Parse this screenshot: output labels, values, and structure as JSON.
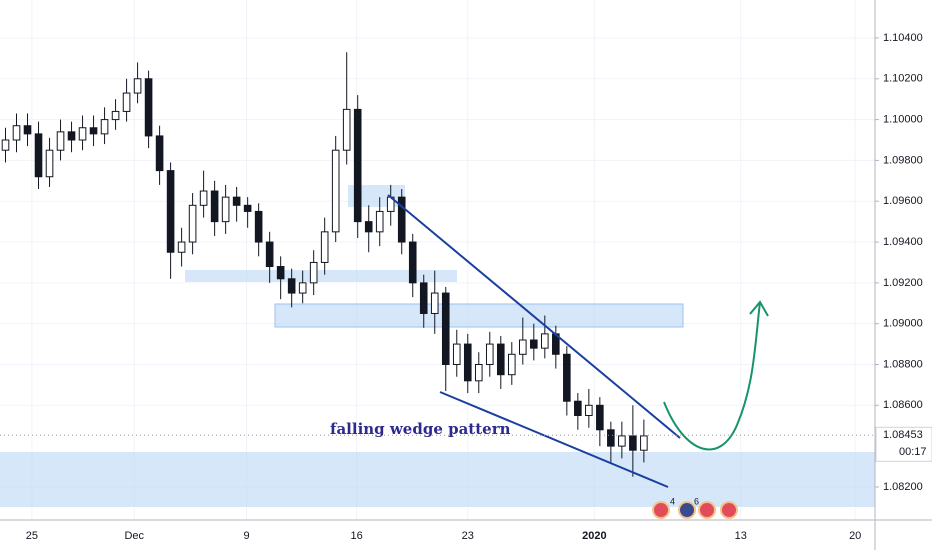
{
  "chart_data": {
    "type": "candlestick",
    "annotation": "falling wedge pattern",
    "event_counts": [
      "4",
      "6"
    ],
    "color": "#131722",
    "xlim": [
      -0.5,
      79
    ],
    "xticks": [
      {
        "value": 2.4,
        "label": "25"
      },
      {
        "value": 11.7,
        "label": "Dec"
      },
      {
        "value": 21.9,
        "label": "9"
      },
      {
        "value": 31.9,
        "label": "16"
      },
      {
        "value": 42,
        "label": "23"
      },
      {
        "value": 53.5,
        "label": "2020"
      },
      {
        "value": 66.8,
        "label": "13"
      },
      {
        "value": 77.2,
        "label": "20"
      }
    ],
    "ylim": [
      1.08038,
      1.10586
    ],
    "yticks": [
      {
        "value": 1.082,
        "label": "1.08200"
      },
      {
        "value": 1.086,
        "label": "1.08600"
      },
      {
        "value": 1.088,
        "label": "1.08800"
      },
      {
        "value": 1.09,
        "label": "1.09000"
      },
      {
        "value": 1.092,
        "label": "1.09200"
      },
      {
        "value": 1.094,
        "label": "1.09400"
      },
      {
        "value": 1.096,
        "label": "1.09600"
      },
      {
        "value": 1.098,
        "label": "1.09800"
      },
      {
        "value": 1.1,
        "label": "1.10000"
      },
      {
        "value": 1.102,
        "label": "1.10200"
      },
      {
        "value": 1.104,
        "label": "1.10400"
      }
    ],
    "last_price": {
      "value": 1.08453,
      "label": "1.08453"
    },
    "countdown": "00:17",
    "grid": true,
    "open": [
      1.0985,
      1.099,
      1.0997,
      1.0993,
      1.0972,
      1.0985,
      1.0994,
      1.099,
      1.0996,
      1.0993,
      1.1,
      1.1004,
      1.1013,
      1.102,
      1.0992,
      1.0975,
      1.0935,
      1.094,
      1.0958,
      1.0965,
      1.095,
      1.0962,
      1.0958,
      1.0955,
      1.094,
      1.0928,
      1.0922,
      1.0915,
      1.092,
      1.093,
      1.0945,
      1.0985,
      1.1005,
      1.095,
      1.0945,
      1.0955,
      1.0962,
      1.094,
      1.092,
      1.0905,
      1.0915,
      1.088,
      1.089,
      1.0872,
      1.088,
      1.089,
      1.0875,
      1.0885,
      1.0892,
      1.0888,
      1.0895,
      1.0885,
      1.0862,
      1.0855,
      1.086,
      1.0848,
      1.084,
      1.0845,
      1.0838
    ],
    "high": [
      1.0996,
      1.1003,
      1.1003,
      1.0999,
      1.0991,
      1.1,
      1.0999,
      1.1002,
      1.1002,
      1.1006,
      1.101,
      1.102,
      1.1028,
      1.1024,
      1.0997,
      1.0979,
      1.0947,
      1.0964,
      1.0975,
      1.097,
      1.0968,
      1.0967,
      1.0962,
      1.0959,
      1.0945,
      1.0933,
      1.0927,
      1.0926,
      1.0936,
      1.0952,
      1.0992,
      1.1033,
      1.1012,
      1.0958,
      1.0962,
      1.0968,
      1.0966,
      1.0944,
      1.0924,
      1.0926,
      1.0918,
      1.0897,
      1.0895,
      1.0886,
      1.0896,
      1.0894,
      1.0891,
      1.0903,
      1.09,
      1.0904,
      1.0899,
      1.0889,
      1.0866,
      1.0868,
      1.0864,
      1.0852,
      1.0852,
      1.086,
      1.0853
    ],
    "low": [
      1.0979,
      1.0984,
      1.0987,
      1.0966,
      1.0967,
      1.098,
      1.0984,
      1.0985,
      1.0987,
      1.0988,
      1.0995,
      1.0999,
      1.1008,
      1.0986,
      1.0968,
      1.0922,
      1.0928,
      1.0934,
      1.0952,
      1.0943,
      1.0944,
      1.095,
      1.0947,
      1.0933,
      1.092,
      1.0912,
      1.0908,
      1.091,
      1.0914,
      1.0924,
      1.094,
      1.0978,
      1.0942,
      1.0935,
      1.0938,
      1.0948,
      1.0934,
      1.0913,
      1.0898,
      1.0895,
      1.0867,
      1.0874,
      1.0866,
      1.0866,
      1.0874,
      1.0868,
      1.087,
      1.088,
      1.0882,
      1.0883,
      1.0878,
      1.0855,
      1.0848,
      1.0849,
      1.084,
      1.0832,
      1.0834,
      1.0825,
      1.0832
    ],
    "close": [
      1.099,
      1.0997,
      1.0993,
      1.0972,
      1.0985,
      1.0994,
      1.099,
      1.0996,
      1.0993,
      1.1,
      1.1004,
      1.1013,
      1.102,
      1.0992,
      1.0975,
      1.0935,
      1.094,
      1.0958,
      1.0965,
      1.095,
      1.0962,
      1.0958,
      1.0955,
      1.094,
      1.0928,
      1.0922,
      1.0915,
      1.092,
      1.093,
      1.0945,
      1.0985,
      1.1005,
      1.095,
      1.0945,
      1.0955,
      1.0962,
      1.094,
      1.092,
      1.0905,
      1.0915,
      1.088,
      1.089,
      1.0872,
      1.088,
      1.089,
      1.0875,
      1.0885,
      1.0892,
      1.0888,
      1.0895,
      1.0885,
      1.0862,
      1.0855,
      1.086,
      1.0848,
      1.084,
      1.0845,
      1.0838,
      1.0845
    ]
  }
}
